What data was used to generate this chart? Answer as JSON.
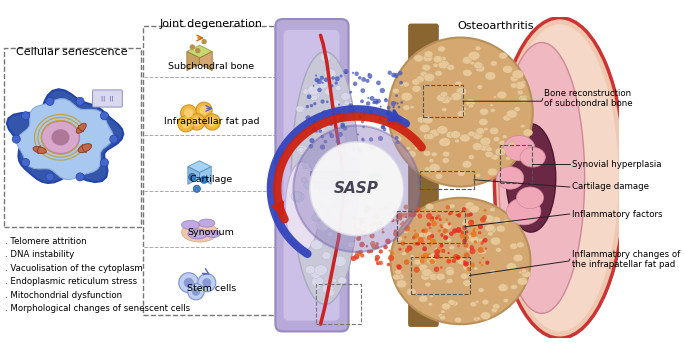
{
  "title_left": "Cellular senescence",
  "title_right": "Osteoarthritis",
  "title_middle": "Joint degeneration",
  "sasp_label": "SASP",
  "left_labels": [
    ". Telomere attrition",
    ". DNA instability",
    ". Vacuolisation of the cytoplasm",
    ". Endoplasmic reticulum stress",
    ". Mitochondrial dysfunction",
    ". Morphological changes of senescent cells"
  ],
  "middle_labels": [
    "Subchondral bone",
    "Infrapatellar fat pad",
    "Cartilage",
    "Synovium",
    "Stem cells"
  ],
  "right_labels": [
    "Bone reconstruction\nof subchondral bone",
    "Synovial hyperplasia",
    "Cartilage damage",
    "Inflammatory factors",
    "Inflammatory changes of\nthe infrapatellar fat pad"
  ],
  "bg_color": "#ffffff",
  "arrow_blue": "#3344bb",
  "arrow_red": "#cc2211",
  "dashed_box_color": "#777777",
  "annotation_line_color": "#222222",
  "font_size_title": 8.0,
  "font_size_label": 6.8,
  "font_size_sasp": 11,
  "font_size_small": 6.2
}
